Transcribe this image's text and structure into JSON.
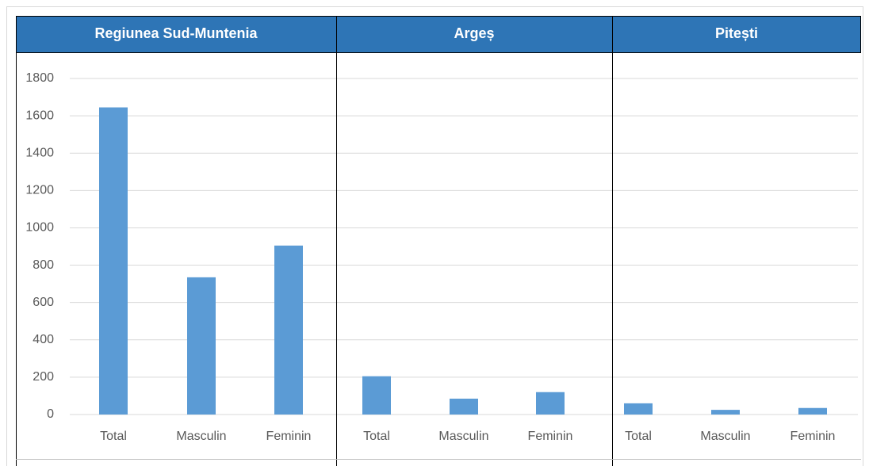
{
  "chart_data": {
    "type": "bar",
    "color": "#5b9bd5",
    "ylim": [
      0,
      1800
    ],
    "yticks": [
      0,
      200,
      400,
      600,
      800,
      1000,
      1200,
      1400,
      1600,
      1800
    ],
    "grid": true,
    "panels": [
      {
        "title": "Regiunea Sud-Muntenia",
        "categories": [
          "Total",
          "Masculin",
          "Feminin"
        ],
        "values": [
          1645,
          735,
          905
        ]
      },
      {
        "title": "Argeș",
        "categories": [
          "Total",
          "Masculin",
          "Feminin"
        ],
        "values": [
          205,
          85,
          120
        ]
      },
      {
        "title": "Pitești",
        "categories": [
          "Total",
          "Masculin",
          "Feminin"
        ],
        "values": [
          60,
          25,
          35
        ]
      }
    ]
  }
}
